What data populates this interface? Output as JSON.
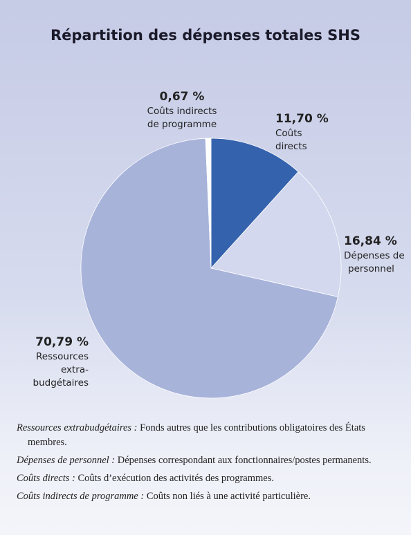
{
  "chart_data": {
    "type": "pie",
    "title": "Répartition des dépenses totales SHS",
    "categories": [
      [
        "Coûts",
        "directs"
      ],
      [
        "Dépenses de",
        "personnel"
      ],
      [
        "Ressources",
        "extra-",
        "budgétaires"
      ],
      [
        "Coûts indirects",
        "de programme"
      ]
    ],
    "values": [
      11.7,
      16.84,
      70.79,
      0.67
    ],
    "value_labels": [
      "11,70 %",
      "16,84 %",
      "70,79 %",
      "0,67 %"
    ],
    "colors": [
      "#3562ad",
      "#d3d8ee",
      "#a8b3da",
      "#ffffff"
    ]
  },
  "notes": [
    {
      "term": "Ressources extrabudgétaires :",
      "text": "Fonds autres que les contributions obligatoires des États membres."
    },
    {
      "term": "Dépenses de personnel :",
      "text": "Dépenses correspondant aux fonctionnaires/postes permanents."
    },
    {
      "term": "Coûts directs :",
      "text": "Coûts d’exécution des activités des programmes."
    },
    {
      "term": "Coûts indirects de programme :",
      "text": "Coûts non liés à une activité particulière."
    }
  ]
}
